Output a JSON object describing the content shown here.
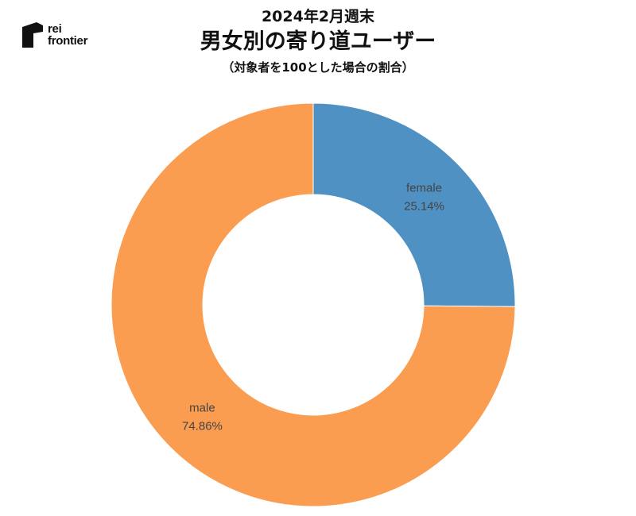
{
  "brand": {
    "line1": "rei",
    "line2": "frontier",
    "logo_icon": "rei-frontier-logo-mark"
  },
  "header": {
    "period": "2024年2月週末",
    "title": "男女別の寄り道ユーザー",
    "note": "（対象者を100とした場合の割合）"
  },
  "chart_data": {
    "type": "pie",
    "variant": "donut",
    "slices": [
      {
        "name": "female",
        "value": 25.14,
        "label": "25.14%",
        "color": "#4f91c3"
      },
      {
        "name": "male",
        "value": 74.86,
        "label": "74.86%",
        "color": "#fb9d51"
      }
    ],
    "start": "12 o'clock",
    "direction": "clockwise",
    "legend": "none"
  }
}
